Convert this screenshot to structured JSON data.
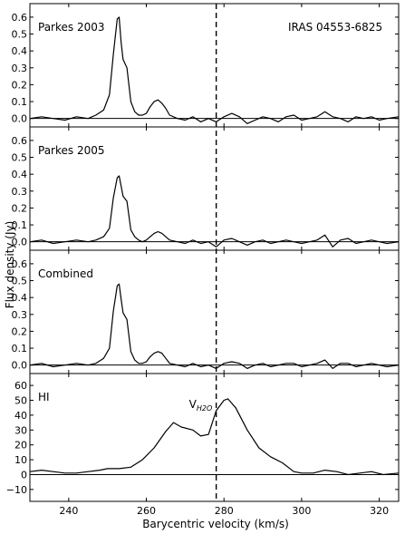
{
  "chart_data": {
    "type": "line",
    "xlabel": "Barycentric velocity (km/s)",
    "ylabel": "Flux density (Jy)",
    "xlim": [
      230,
      325
    ],
    "xticks": [
      240,
      260,
      280,
      300,
      320
    ],
    "reference_velocity": 278,
    "reference_label": "V",
    "reference_label_sub": "H2O",
    "panels": [
      {
        "id": "parkes2003",
        "label": "Parkes 2003",
        "annotation": "IRAS 04553-6825",
        "ylim": [
          -0.05,
          0.68
        ],
        "yticks": [
          0.0,
          0.1,
          0.2,
          0.3,
          0.4,
          0.5,
          0.6
        ],
        "ytick_labels": [
          "0.0",
          "0.1",
          "0.2",
          "0.3",
          "0.4",
          "0.5",
          "0.6"
        ],
        "x": [
          230,
          233,
          236,
          239,
          242,
          245,
          247,
          249,
          250.5,
          251.5,
          252.5,
          253,
          253.5,
          254,
          255,
          256,
          257,
          258,
          259,
          260,
          261,
          262,
          263,
          264,
          265,
          266,
          268,
          270,
          272,
          274,
          276,
          278,
          280,
          282,
          284,
          286,
          288,
          290,
          292,
          294,
          296,
          298,
          300,
          302,
          304,
          306,
          308,
          310,
          312,
          314,
          316,
          318,
          320,
          322,
          325
        ],
        "y": [
          0.0,
          0.01,
          0.0,
          -0.01,
          0.01,
          0.0,
          0.02,
          0.05,
          0.14,
          0.38,
          0.59,
          0.6,
          0.45,
          0.35,
          0.3,
          0.1,
          0.04,
          0.02,
          0.02,
          0.03,
          0.07,
          0.1,
          0.11,
          0.09,
          0.06,
          0.02,
          0.0,
          -0.01,
          0.01,
          -0.02,
          0.0,
          -0.02,
          0.01,
          0.03,
          0.01,
          -0.03,
          -0.01,
          0.01,
          0.0,
          -0.02,
          0.01,
          0.02,
          -0.01,
          0.0,
          0.01,
          0.04,
          0.01,
          0.0,
          -0.02,
          0.01,
          0.0,
          0.01,
          -0.01,
          0.0,
          0.01
        ]
      },
      {
        "id": "parkes2005",
        "label": "Parkes 2005",
        "annotation": "",
        "ylim": [
          -0.05,
          0.68
        ],
        "yticks": [
          0.0,
          0.1,
          0.2,
          0.3,
          0.4,
          0.5,
          0.6
        ],
        "ytick_labels": [
          "0.0",
          "0.1",
          "0.2",
          "0.3",
          "0.4",
          "0.5",
          "0.6"
        ],
        "x": [
          230,
          233,
          236,
          239,
          242,
          245,
          247,
          249,
          250.5,
          251.5,
          252.5,
          253,
          253.5,
          254,
          255,
          256,
          257,
          258,
          259,
          260,
          261,
          262,
          263,
          264,
          265,
          266,
          268,
          270,
          272,
          274,
          276,
          278,
          280,
          282,
          284,
          286,
          288,
          290,
          292,
          294,
          296,
          298,
          300,
          302,
          304,
          306,
          308,
          310,
          312,
          314,
          316,
          318,
          320,
          322,
          325
        ],
        "y": [
          0.0,
          0.01,
          -0.01,
          0.0,
          0.01,
          0.0,
          0.01,
          0.03,
          0.08,
          0.26,
          0.38,
          0.39,
          0.33,
          0.27,
          0.24,
          0.07,
          0.03,
          0.01,
          0.0,
          0.01,
          0.03,
          0.05,
          0.06,
          0.05,
          0.03,
          0.01,
          0.0,
          -0.01,
          0.01,
          -0.01,
          0.0,
          -0.03,
          0.01,
          0.02,
          0.0,
          -0.02,
          0.0,
          0.01,
          -0.01,
          0.0,
          0.01,
          0.0,
          -0.01,
          0.0,
          0.01,
          0.04,
          -0.03,
          0.01,
          0.02,
          -0.01,
          0.0,
          0.01,
          0.0,
          -0.01,
          0.0
        ]
      },
      {
        "id": "combined",
        "label": "Combined",
        "annotation": "",
        "ylim": [
          -0.05,
          0.68
        ],
        "yticks": [
          0.0,
          0.1,
          0.2,
          0.3,
          0.4,
          0.5,
          0.6
        ],
        "ytick_labels": [
          "0.0",
          "0.1",
          "0.2",
          "0.3",
          "0.4",
          "0.5",
          "0.6"
        ],
        "x": [
          230,
          233,
          236,
          239,
          242,
          245,
          247,
          249,
          250.5,
          251.5,
          252.5,
          253,
          253.5,
          254,
          255,
          256,
          257,
          258,
          259,
          260,
          261,
          262,
          263,
          264,
          265,
          266,
          268,
          270,
          272,
          274,
          276,
          278,
          280,
          282,
          284,
          286,
          288,
          290,
          292,
          294,
          296,
          298,
          300,
          302,
          304,
          306,
          308,
          310,
          312,
          314,
          316,
          318,
          320,
          322,
          325
        ],
        "y": [
          0.0,
          0.01,
          -0.01,
          0.0,
          0.01,
          0.0,
          0.01,
          0.04,
          0.1,
          0.32,
          0.47,
          0.48,
          0.39,
          0.31,
          0.27,
          0.08,
          0.03,
          0.01,
          0.01,
          0.02,
          0.05,
          0.07,
          0.08,
          0.07,
          0.04,
          0.01,
          0.0,
          -0.01,
          0.01,
          -0.01,
          0.0,
          -0.02,
          0.01,
          0.02,
          0.01,
          -0.02,
          0.0,
          0.01,
          -0.01,
          0.0,
          0.01,
          0.01,
          -0.01,
          0.0,
          0.01,
          0.03,
          -0.02,
          0.01,
          0.01,
          -0.01,
          0.0,
          0.01,
          0.0,
          -0.01,
          0.0
        ]
      },
      {
        "id": "hi",
        "label": "HI",
        "annotation": "",
        "ylim": [
          -18,
          68
        ],
        "yticks": [
          -10,
          0,
          10,
          20,
          30,
          40,
          50,
          60
        ],
        "ytick_labels": [
          "−10",
          "0",
          "10",
          "20",
          "30",
          "40",
          "50",
          "60"
        ],
        "x": [
          230,
          233,
          236,
          239,
          242,
          245,
          248,
          250,
          253,
          256,
          259,
          262,
          265,
          267,
          269,
          272,
          274,
          276,
          278,
          280,
          281,
          283,
          286,
          289,
          292,
          295,
          298,
          300,
          303,
          306,
          309,
          312,
          315,
          318,
          321,
          325
        ],
        "y": [
          2,
          3,
          2,
          1,
          1,
          2,
          3,
          4,
          4,
          5,
          10,
          18,
          29,
          35,
          32,
          30,
          26,
          27,
          43,
          50,
          51,
          45,
          30,
          18,
          12,
          8,
          2,
          1,
          1,
          3,
          2,
          0,
          1,
          2,
          0,
          1
        ]
      }
    ]
  }
}
